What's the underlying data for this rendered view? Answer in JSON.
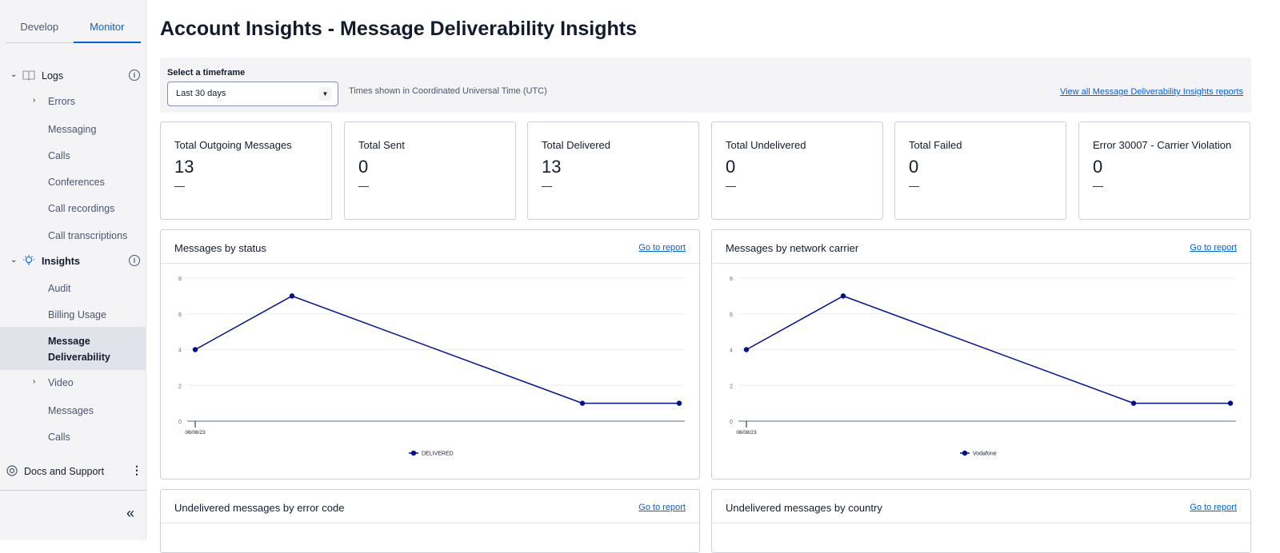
{
  "sidebar": {
    "tabs": [
      {
        "label": "Develop"
      },
      {
        "label": "Monitor"
      }
    ],
    "logs": {
      "label": "Logs",
      "items": [
        "Errors",
        "Messaging",
        "Calls",
        "Conferences",
        "Call recordings",
        "Call transcriptions"
      ]
    },
    "insights": {
      "label": "Insights",
      "items": [
        "Audit",
        "Billing Usage",
        "Message Deliverability",
        "Video",
        "Messages",
        "Calls"
      ]
    },
    "docs_label": "Docs and Support",
    "collapse_icon": "double-chevron-left"
  },
  "page": {
    "title": "Account Insights - Message Deliverability Insights"
  },
  "filter": {
    "label": "Select a timeframe",
    "selected": "Last 30 days",
    "timezone_note": "Times shown in Coordinated Universal Time (UTC)",
    "view_all_link": "View all Message Deliverability Insights reports"
  },
  "cards": [
    {
      "title": "Total Outgoing Messages",
      "value": "13",
      "delta": "—"
    },
    {
      "title": "Total Sent",
      "value": "0",
      "delta": "—"
    },
    {
      "title": "Total Delivered",
      "value": "13",
      "delta": "—"
    },
    {
      "title": "Total Undelivered",
      "value": "0",
      "delta": "—"
    },
    {
      "title": "Total Failed",
      "value": "0",
      "delta": "—"
    },
    {
      "title": "Error 30007 - Carrier Violation",
      "value": "0",
      "delta": "—"
    }
  ],
  "panels": [
    {
      "title": "Messages by status",
      "link": "Go to report"
    },
    {
      "title": "Messages by network carrier",
      "link": "Go to report"
    },
    {
      "title": "Undelivered messages by error code",
      "link": "Go to report"
    },
    {
      "title": "Undelivered messages by country",
      "link": "Go to report"
    }
  ],
  "chart_data": [
    {
      "type": "line",
      "ylim": [
        0,
        8
      ],
      "yticks": [
        "0",
        "2",
        "4",
        "6",
        "8"
      ],
      "xtick_labels": [
        "06/08/23"
      ],
      "grid": true,
      "legend": "bottom",
      "color": "#000f8f",
      "series": [
        {
          "name": "DELIVERED",
          "x": [
            "06/08/23",
            "06/09/23",
            "06/12/23",
            "06/13/23"
          ],
          "y": [
            4,
            7,
            1,
            1
          ]
        }
      ]
    },
    {
      "type": "line",
      "ylim": [
        0,
        8
      ],
      "yticks": [
        "0",
        "2",
        "4",
        "6",
        "8"
      ],
      "xtick_labels": [
        "06/08/23"
      ],
      "grid": true,
      "legend": "bottom",
      "color": "#000f8f",
      "series": [
        {
          "name": "Vodafone",
          "x": [
            "06/08/23",
            "06/09/23",
            "06/12/23",
            "06/13/23"
          ],
          "y": [
            4,
            7,
            1,
            1
          ]
        }
      ]
    }
  ]
}
